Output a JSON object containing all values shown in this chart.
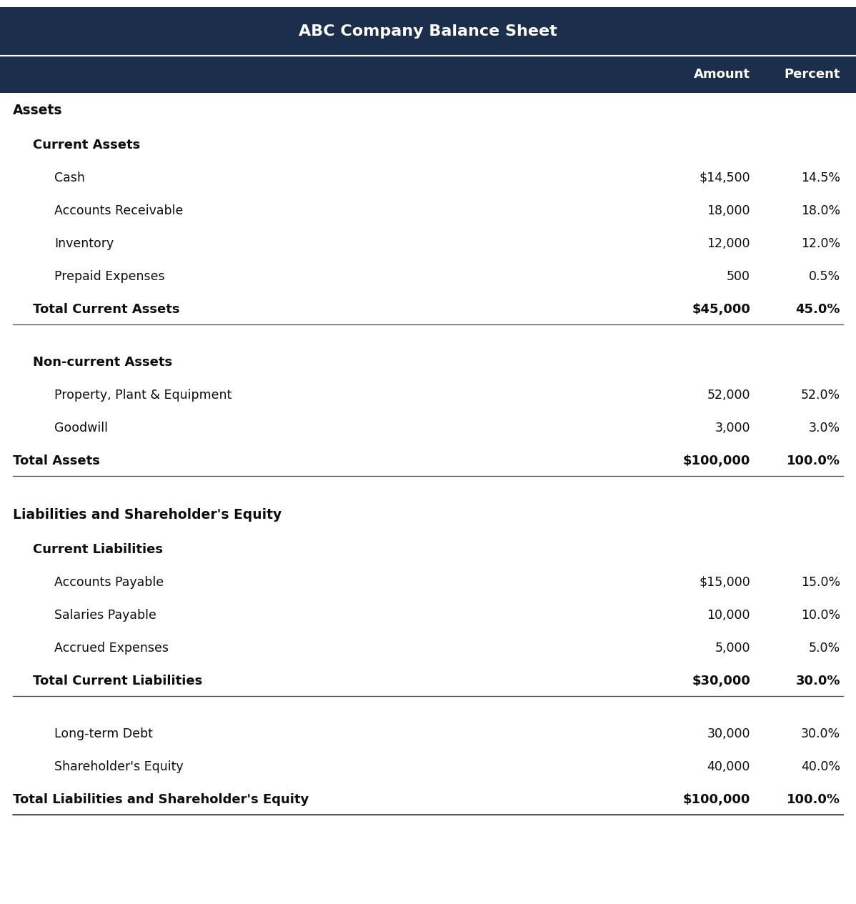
{
  "title": "ABC Company Balance Sheet",
  "header_bg": "#1b2e4b",
  "header_text_color": "#ffffff",
  "body_bg": "#ffffff",
  "body_text_color": "#0d0d0d",
  "col1_header": "Amount",
  "col2_header": "Percent",
  "title_fontsize": 16,
  "col_header_fontsize": 13,
  "section_fontsize": 13.5,
  "subsection_fontsize": 13,
  "item_fontsize": 12.5,
  "total_fontsize": 13,
  "rows": [
    {
      "label": "Assets",
      "amount": "",
      "percent": "",
      "style": "section_header",
      "indent": 0
    },
    {
      "label": "Current Assets",
      "amount": "",
      "percent": "",
      "style": "subsection_header",
      "indent": 1
    },
    {
      "label": "Cash",
      "amount": "$14,500",
      "percent": "14.5%",
      "style": "item",
      "indent": 2
    },
    {
      "label": "Accounts Receivable",
      "amount": "18,000",
      "percent": "18.0%",
      "style": "item",
      "indent": 2
    },
    {
      "label": "Inventory",
      "amount": "12,000",
      "percent": "12.0%",
      "style": "item",
      "indent": 2
    },
    {
      "label": "Prepaid Expenses",
      "amount": "500",
      "percent": "0.5%",
      "style": "item",
      "indent": 2
    },
    {
      "label": "Total Current Assets",
      "amount": "$45,000",
      "percent": "45.0%",
      "style": "total",
      "indent": 1
    },
    {
      "label": "",
      "amount": "",
      "percent": "",
      "style": "spacer",
      "indent": 0
    },
    {
      "label": "Non-current Assets",
      "amount": "",
      "percent": "",
      "style": "subsection_header",
      "indent": 1
    },
    {
      "label": "Property, Plant & Equipment",
      "amount": "52,000",
      "percent": "52.0%",
      "style": "item",
      "indent": 2
    },
    {
      "label": "Goodwill",
      "amount": "3,000",
      "percent": "3.0%",
      "style": "item",
      "indent": 2
    },
    {
      "label": "Total Assets",
      "amount": "$100,000",
      "percent": "100.0%",
      "style": "total",
      "indent": 0
    },
    {
      "label": "",
      "amount": "",
      "percent": "",
      "style": "spacer",
      "indent": 0
    },
    {
      "label": "Liabilities and Shareholder's Equity",
      "amount": "",
      "percent": "",
      "style": "section_header",
      "indent": 0
    },
    {
      "label": "Current Liabilities",
      "amount": "",
      "percent": "",
      "style": "subsection_header",
      "indent": 1
    },
    {
      "label": "Accounts Payable",
      "amount": "$15,000",
      "percent": "15.0%",
      "style": "item",
      "indent": 2
    },
    {
      "label": "Salaries Payable",
      "amount": "10,000",
      "percent": "10.0%",
      "style": "item",
      "indent": 2
    },
    {
      "label": "Accrued Expenses",
      "amount": "5,000",
      "percent": "5.0%",
      "style": "item",
      "indent": 2
    },
    {
      "label": "Total Current Liabilities",
      "amount": "$30,000",
      "percent": "30.0%",
      "style": "total",
      "indent": 1
    },
    {
      "label": "",
      "amount": "",
      "percent": "",
      "style": "spacer",
      "indent": 0
    },
    {
      "label": "Long-term Debt",
      "amount": "30,000",
      "percent": "30.0%",
      "style": "item",
      "indent": 2
    },
    {
      "label": "Shareholder's Equity",
      "amount": "40,000",
      "percent": "40.0%",
      "style": "item",
      "indent": 2
    },
    {
      "label": "Total Liabilities and Shareholder's Equity",
      "amount": "$100,000",
      "percent": "100.0%",
      "style": "total",
      "indent": 0
    }
  ]
}
